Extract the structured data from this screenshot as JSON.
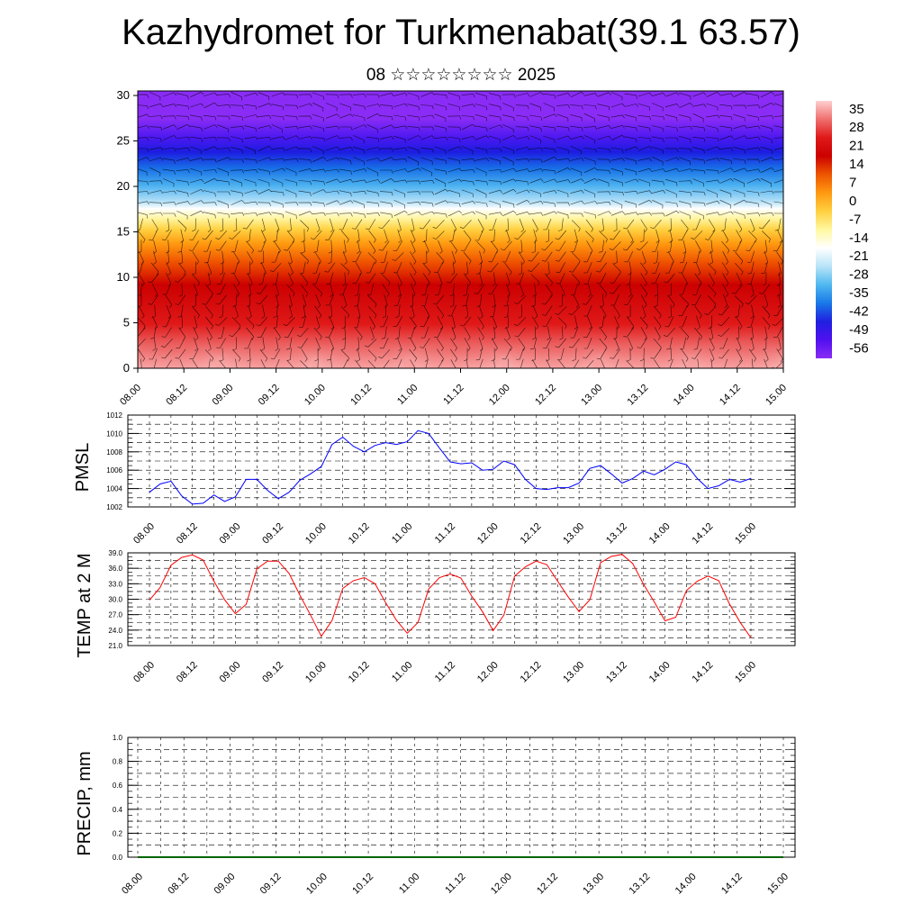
{
  "title": "Kazhydromet for Turkmenabat(39.1 63.57)",
  "subtitle": "08 ☆☆☆☆☆☆☆☆ 2025",
  "colors": {
    "pmsl_line": "#0000ff",
    "temp_line": "#ff0000",
    "precip_line": "#006400",
    "gradient": [
      "#ffd0d0",
      "#f07070",
      "#e01818",
      "#cc0000",
      "#ee5500",
      "#ff9911",
      "#ffd040",
      "#fff8a0",
      "#ffffff",
      "#b8e4f8",
      "#50b8f0",
      "#1878e8",
      "#2020e0",
      "#5010f0",
      "#8a2cf5"
    ]
  },
  "chart_data": [
    {
      "type": "heatmap",
      "name": "cross-section",
      "x_ticks": [
        "08.00",
        "08.12",
        "09.00",
        "09.12",
        "10.00",
        "10.12",
        "11.00",
        "11.12",
        "12.00",
        "12.12",
        "13.00",
        "13.12",
        "14.00",
        "14.12",
        "15.00"
      ],
      "y_ticks": [
        0,
        5,
        10,
        15,
        20,
        25,
        30
      ],
      "ylim": [
        0,
        30.5
      ],
      "colorbar_labels": [
        "35",
        "28",
        "21",
        "14",
        "7",
        "0",
        "-7",
        "-14",
        "-21",
        "-28",
        "-35",
        "-42",
        "-49",
        "-56"
      ],
      "zlim": [
        -60,
        38
      ]
    },
    {
      "type": "line",
      "ylabel": "PMSL",
      "x_ticks": [
        "08.00",
        "08.12",
        "09.00",
        "09.12",
        "10.00",
        "10.12",
        "11.00",
        "11.12",
        "12.00",
        "12.12",
        "13.00",
        "13.12",
        "14.00",
        "14.12",
        "15.00"
      ],
      "y_ticks": [
        "1002",
        "1004",
        "1006",
        "1008",
        "1010",
        "1012"
      ],
      "ylim": [
        1002,
        1012
      ],
      "values": [
        1003.6,
        1004.5,
        1004.8,
        1003.2,
        1002.3,
        1002.4,
        1003.3,
        1002.6,
        1003.1,
        1005.0,
        1005.0,
        1003.8,
        1002.9,
        1003.6,
        1004.9,
        1005.6,
        1006.4,
        1008.8,
        1009.6,
        1008.6,
        1008.0,
        1008.7,
        1009.0,
        1008.8,
        1009.1,
        1010.3,
        1010.0,
        1008.4,
        1006.9,
        1006.7,
        1006.8,
        1006.0,
        1006.1,
        1007.0,
        1006.6,
        1005.0,
        1004.0,
        1003.9,
        1004.1,
        1004.1,
        1004.6,
        1006.2,
        1006.5,
        1005.6,
        1004.6,
        1005.1,
        1005.9,
        1005.5,
        1006.1,
        1006.9,
        1006.6,
        1005.1,
        1004.0,
        1004.3,
        1005.0,
        1004.7,
        1005.1
      ]
    },
    {
      "type": "line",
      "ylabel": "TEMP at 2 M",
      "x_ticks": [
        "08.00",
        "08.12",
        "09.00",
        "09.12",
        "10.00",
        "10.12",
        "11.00",
        "11.12",
        "12.00",
        "12.12",
        "13.00",
        "13.12",
        "14.00",
        "14.12",
        "15.00"
      ],
      "y_ticks": [
        "21.0",
        "24.0",
        "27.0",
        "30.0",
        "33.0",
        "36.0",
        "39.0"
      ],
      "ylim": [
        21,
        39
      ],
      "values": [
        29.8,
        32.3,
        36.6,
        38.1,
        38.6,
        37.6,
        33.5,
        29.9,
        27.2,
        29.0,
        35.9,
        37.4,
        37.4,
        35.0,
        30.8,
        26.9,
        22.8,
        25.9,
        32.1,
        33.6,
        34.2,
        33.0,
        29.3,
        25.9,
        23.4,
        25.5,
        32.0,
        34.2,
        34.9,
        34.1,
        30.6,
        27.6,
        23.9,
        26.9,
        34.5,
        36.3,
        37.4,
        36.7,
        33.5,
        30.4,
        27.6,
        29.9,
        37.1,
        38.3,
        38.7,
        36.9,
        32.9,
        29.5,
        25.8,
        26.5,
        31.7,
        33.5,
        34.5,
        33.6,
        29.1,
        25.5,
        22.5
      ]
    },
    {
      "type": "line",
      "ylabel": "PRECIP, mm",
      "x_ticks": [
        "08.00",
        "08.12",
        "09.00",
        "09.12",
        "10.00",
        "10.12",
        "11.00",
        "11.12",
        "12.00",
        "12.12",
        "13.00",
        "13.12",
        "14.00",
        "14.12",
        "15.00"
      ],
      "y_ticks": [
        "0.0",
        "0.2",
        "0.4",
        "0.6",
        "0.8",
        "1.0"
      ],
      "ylim": [
        0,
        1
      ],
      "values": [
        0,
        0,
        0,
        0,
        0,
        0,
        0,
        0,
        0,
        0,
        0,
        0,
        0,
        0,
        0,
        0,
        0,
        0,
        0,
        0,
        0,
        0,
        0,
        0,
        0,
        0,
        0,
        0,
        0,
        0,
        0,
        0,
        0,
        0,
        0,
        0,
        0,
        0,
        0,
        0,
        0,
        0,
        0,
        0,
        0,
        0,
        0,
        0,
        0,
        0,
        0,
        0,
        0,
        0,
        0,
        0,
        0
      ]
    }
  ]
}
